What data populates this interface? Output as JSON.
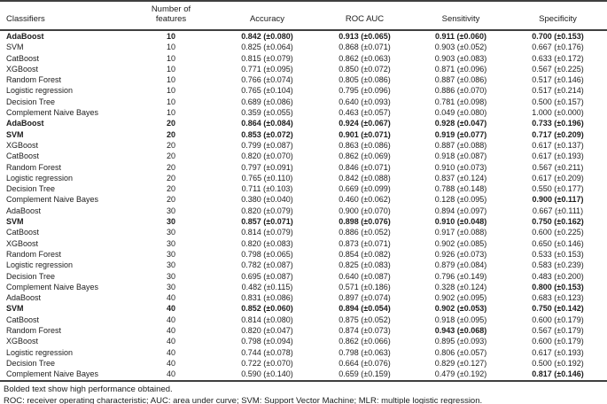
{
  "table": {
    "header": {
      "classifiers": "Classifiers",
      "features_line1": "Number of",
      "features_line2": "features",
      "accuracy": "Accuracy",
      "roc_auc": "ROC AUC",
      "sensitivity": "Sensitivity",
      "specificity": "Specificity"
    },
    "rows": [
      {
        "classifier": "AdaBoost",
        "features": "10",
        "accuracy": "0.842 (±0.080)",
        "roc_auc": "0.913 (±0.065)",
        "sensitivity": "0.911 (±0.060)",
        "specificity": "0.700 (±0.153)",
        "bold": "row"
      },
      {
        "classifier": "SVM",
        "features": "10",
        "accuracy": "0.825 (±0.064)",
        "roc_auc": "0.868 (±0.071)",
        "sensitivity": "0.903 (±0.052)",
        "specificity": "0.667 (±0.176)"
      },
      {
        "classifier": "CatBoost",
        "features": "10",
        "accuracy": "0.815 (±0.079)",
        "roc_auc": "0.862 (±0.063)",
        "sensitivity": "0.903 (±0.083)",
        "specificity": "0.633 (±0.172)"
      },
      {
        "classifier": "XGBoost",
        "features": "10",
        "accuracy": "0.771 (±0.095)",
        "roc_auc": "0.850 (±0.072)",
        "sensitivity": "0.871 (±0.096)",
        "specificity": "0.567 (±0.225)"
      },
      {
        "classifier": "Random Forest",
        "features": "10",
        "accuracy": "0.766 (±0.074)",
        "roc_auc": "0.805 (±0.086)",
        "sensitivity": "0.887 (±0.086)",
        "specificity": "0.517 (±0.146)"
      },
      {
        "classifier": "Logistic regression",
        "features": "10",
        "accuracy": "0.765 (±0.104)",
        "roc_auc": "0.795 (±0.096)",
        "sensitivity": "0.886 (±0.070)",
        "specificity": "0.517 (±0.214)"
      },
      {
        "classifier": "Decision Tree",
        "features": "10",
        "accuracy": "0.689 (±0.086)",
        "roc_auc": "0.640 (±0.093)",
        "sensitivity": "0.781 (±0.098)",
        "specificity": "0.500 (±0.157)"
      },
      {
        "classifier": "Complement Naive Bayes",
        "features": "10",
        "accuracy": "0.359 (±0.055)",
        "roc_auc": "0.463 (±0.057)",
        "sensitivity": "0.049 (±0.080)",
        "specificity": "1.000 (±0.000)"
      },
      {
        "classifier": "AdaBoost",
        "features": "20",
        "accuracy": "0.864 (±0.084)",
        "roc_auc": "0.924 (±0.067)",
        "sensitivity": "0.928 (±0.047)",
        "specificity": "0.733 (±0.196)",
        "bold": "row"
      },
      {
        "classifier": "SVM",
        "features": "20",
        "accuracy": "0.853 (±0.072)",
        "roc_auc": "0.901 (±0.071)",
        "sensitivity": "0.919 (±0.077)",
        "specificity": "0.717 (±0.209)",
        "bold": "row"
      },
      {
        "classifier": "XGBoost",
        "features": "20",
        "accuracy": "0.799 (±0.087)",
        "roc_auc": "0.863 (±0.086)",
        "sensitivity": "0.887 (±0.088)",
        "specificity": "0.617 (±0.137)"
      },
      {
        "classifier": "CatBoost",
        "features": "20",
        "accuracy": "0.820 (±0.070)",
        "roc_auc": "0.862 (±0.069)",
        "sensitivity": "0.918 (±0.087)",
        "specificity": "0.617 (±0.193)"
      },
      {
        "classifier": "Random Forest",
        "features": "20",
        "accuracy": "0.797 (±0.091)",
        "roc_auc": "0.846 (±0.071)",
        "sensitivity": "0.910 (±0.073)",
        "specificity": "0.567 (±0.211)"
      },
      {
        "classifier": "Logistic regression",
        "features": "20",
        "accuracy": "0.765 (±0.110)",
        "roc_auc": "0.842 (±0.088)",
        "sensitivity": "0.837 (±0.124)",
        "specificity": "0.617 (±0.209)"
      },
      {
        "classifier": "Decision Tree",
        "features": "20",
        "accuracy": "0.711 (±0.103)",
        "roc_auc": "0.669 (±0.099)",
        "sensitivity": "0.788 (±0.148)",
        "specificity": "0.550 (±0.177)"
      },
      {
        "classifier": "Complement Naive Bayes",
        "features": "20",
        "accuracy": "0.380 (±0.040)",
        "roc_auc": "0.460 (±0.062)",
        "sensitivity": "0.128 (±0.095)",
        "specificity": "0.900 (±0.117)",
        "bold": [
          "specificity"
        ]
      },
      {
        "classifier": "AdaBoost",
        "features": "30",
        "accuracy": "0.820 (±0.079)",
        "roc_auc": "0.900 (±0.070)",
        "sensitivity": "0.894 (±0.097)",
        "specificity": "0.667 (±0.111)"
      },
      {
        "classifier": "SVM",
        "features": "30",
        "accuracy": "0.857 (±0.071)",
        "roc_auc": "0.898 (±0.076)",
        "sensitivity": "0.910 (±0.048)",
        "specificity": "0.750 (±0.162)",
        "bold": "row"
      },
      {
        "classifier": "CatBoost",
        "features": "30",
        "accuracy": "0.814 (±0.079)",
        "roc_auc": "0.886 (±0.052)",
        "sensitivity": "0.917 (±0.088)",
        "specificity": "0.600 (±0.225)"
      },
      {
        "classifier": "XGBoost",
        "features": "30",
        "accuracy": "0.820 (±0.083)",
        "roc_auc": "0.873 (±0.071)",
        "sensitivity": "0.902 (±0.085)",
        "specificity": "0.650 (±0.146)"
      },
      {
        "classifier": "Random Forest",
        "features": "30",
        "accuracy": "0.798 (±0.065)",
        "roc_auc": "0.854 (±0.082)",
        "sensitivity": "0.926 (±0.073)",
        "specificity": "0.533 (±0.153)"
      },
      {
        "classifier": "Logistic regression",
        "features": "30",
        "accuracy": "0.782 (±0.087)",
        "roc_auc": "0.825 (±0.083)",
        "sensitivity": "0.879 (±0.084)",
        "specificity": "0.583 (±0.239)"
      },
      {
        "classifier": "Decision Tree",
        "features": "30",
        "accuracy": "0.695 (±0.087)",
        "roc_auc": "0.640 (±0.087)",
        "sensitivity": "0.796 (±0.149)",
        "specificity": "0.483 (±0.200)"
      },
      {
        "classifier": "Complement Naive Bayes",
        "features": "30",
        "accuracy": "0.482 (±0.115)",
        "roc_auc": "0.571 (±0.186)",
        "sensitivity": "0.328 (±0.124)",
        "specificity": "0.800 (±0.153)",
        "bold": [
          "specificity"
        ]
      },
      {
        "classifier": "AdaBoost",
        "features": "40",
        "accuracy": "0.831 (±0.086)",
        "roc_auc": "0.897 (±0.074)",
        "sensitivity": "0.902 (±0.095)",
        "specificity": "0.683 (±0.123)"
      },
      {
        "classifier": "SVM",
        "features": "40",
        "accuracy": "0.852 (±0.060)",
        "roc_auc": "0.894 (±0.054)",
        "sensitivity": "0.902 (±0.053)",
        "specificity": "0.750 (±0.142)",
        "bold": "row"
      },
      {
        "classifier": "CatBoost",
        "features": "40",
        "accuracy": "0.814 (±0.080)",
        "roc_auc": "0.875 (±0.052)",
        "sensitivity": "0.918 (±0.095)",
        "specificity": "0.600 (±0.179)"
      },
      {
        "classifier": "Random Forest",
        "features": "40",
        "accuracy": "0.820 (±0.047)",
        "roc_auc": "0.874 (±0.073)",
        "sensitivity": "0.943 (±0.068)",
        "specificity": "0.567 (±0.179)",
        "bold": [
          "sensitivity"
        ]
      },
      {
        "classifier": "XGBoost",
        "features": "40",
        "accuracy": "0.798 (±0.094)",
        "roc_auc": "0.862 (±0.066)",
        "sensitivity": "0.895 (±0.093)",
        "specificity": "0.600 (±0.179)"
      },
      {
        "classifier": "Logistic regression",
        "features": "40",
        "accuracy": "0.744 (±0.078)",
        "roc_auc": "0.798 (±0.063)",
        "sensitivity": "0.806 (±0.057)",
        "specificity": "0.617 (±0.193)"
      },
      {
        "classifier": "Decision Tree",
        "features": "40",
        "accuracy": "0.722 (±0.070)",
        "roc_auc": "0.664 (±0.076)",
        "sensitivity": "0.829 (±0.127)",
        "specificity": "0.500 (±0.192)"
      },
      {
        "classifier": "Complement Naive Bayes",
        "features": "40",
        "accuracy": "0.590 (±0.140)",
        "roc_auc": "0.659 (±0.159)",
        "sensitivity": "0.479 (±0.192)",
        "specificity": "0.817 (±0.146)",
        "bold": [
          "specificity"
        ]
      }
    ]
  },
  "footnotes": {
    "bold_note": "Bolded text show high performance obtained.",
    "abbreviations": "ROC: receiver operating characteristic; AUC: area under curve; SVM: Support Vector Machine; MLR: multiple logistic regression."
  },
  "colors": {
    "text": "#1c1c1c",
    "rule": "#3f3f3f",
    "background": "#ffffff"
  }
}
